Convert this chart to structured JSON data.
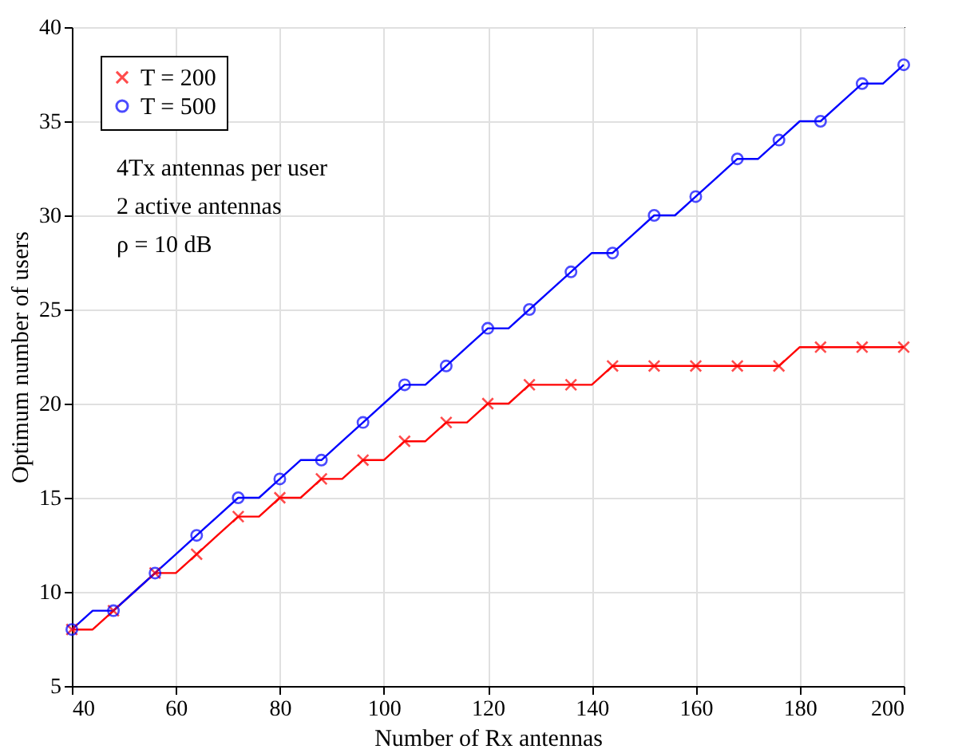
{
  "chart_data": {
    "type": "line",
    "xlabel": "Number of Rx antennas",
    "ylabel": "Optimum number of users",
    "x": [
      40,
      44,
      48,
      52,
      56,
      60,
      64,
      68,
      72,
      76,
      80,
      84,
      88,
      92,
      96,
      100,
      104,
      108,
      112,
      116,
      120,
      124,
      128,
      132,
      136,
      140,
      144,
      148,
      152,
      156,
      160,
      164,
      168,
      172,
      176,
      180,
      184,
      188,
      192,
      196,
      200
    ],
    "series": [
      {
        "name": "T = 200",
        "color": "#ff0000",
        "marker": "cross",
        "values": [
          8,
          8,
          9,
          10,
          11,
          11,
          12,
          13,
          14,
          14,
          15,
          15,
          16,
          16,
          17,
          17,
          18,
          18,
          19,
          19,
          20,
          20,
          21,
          21,
          21,
          21,
          22,
          22,
          22,
          22,
          22,
          22,
          22,
          22,
          22,
          23,
          23,
          23,
          23,
          23,
          23
        ]
      },
      {
        "name": "T = 500",
        "color": "#0000ff",
        "marker": "circle",
        "values": [
          8,
          9,
          9,
          10,
          11,
          12,
          13,
          14,
          15,
          15,
          16,
          17,
          17,
          18,
          19,
          20,
          21,
          21,
          22,
          23,
          24,
          24,
          25,
          26,
          27,
          28,
          28,
          29,
          30,
          30,
          31,
          32,
          33,
          33,
          34,
          35,
          35,
          36,
          37,
          37,
          38
        ]
      }
    ],
    "xlim": [
      40,
      200
    ],
    "xticks": [
      40,
      60,
      80,
      100,
      120,
      140,
      160,
      180,
      200
    ],
    "ylim": [
      5,
      40
    ],
    "yticks": [
      5,
      10,
      15,
      20,
      25,
      30,
      35,
      40
    ],
    "grid": true,
    "legend": "top left",
    "line_style": "solid",
    "annotations": [
      "4Tx antennas per user",
      "2 active antennas",
      "ρ = 10 dB"
    ]
  }
}
